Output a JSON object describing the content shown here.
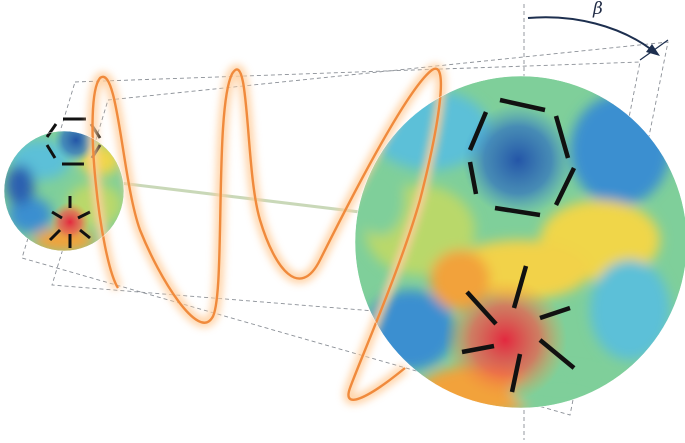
{
  "diagram": {
    "angle_label": "β",
    "colors": {
      "wave": "#f08a3c",
      "wave_glow": "#ffcf9e",
      "arrow": "#1d2f4f",
      "axis_line": "#c9d8b8",
      "dashed": "#8a8f96",
      "stick": "#111111",
      "field_palette": [
        "#2a5fb0",
        "#3a8fd0",
        "#5cc0d8",
        "#7fcf9a",
        "#b9d86a",
        "#f0d64a",
        "#f2a23a",
        "#e8503a"
      ]
    },
    "icons": [
      "hexagon-defect-icon",
      "star-defect-icon"
    ]
  }
}
